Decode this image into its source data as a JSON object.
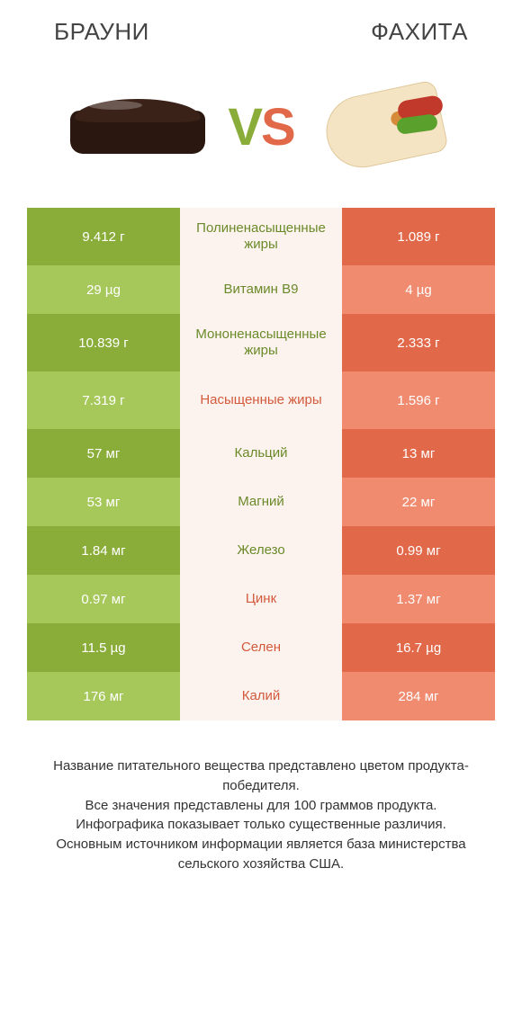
{
  "header": {
    "left_title": "БРАУНИ",
    "right_title": "ФАХИТА",
    "vs_v": "V",
    "vs_s": "S"
  },
  "colors": {
    "green_dark": "#8aad3a",
    "green_light": "#a6c85a",
    "orange_dark": "#e1694a",
    "orange_light": "#f08b6f",
    "mid_bg": "#fdf3ee",
    "mid_green_text": "#6a8a2a",
    "mid_orange_text": "#d25a3c",
    "background": "#ffffff"
  },
  "table": {
    "rows": [
      {
        "left": "9.412 г",
        "mid": "Полиненасыщенные жиры",
        "right": "1.089 г",
        "winner": "left",
        "tall": true
      },
      {
        "left": "29 µg",
        "mid": "Витамин B9",
        "right": "4 µg",
        "winner": "left",
        "tall": false
      },
      {
        "left": "10.839 г",
        "mid": "Мононенасыщенные жиры",
        "right": "2.333 г",
        "winner": "left",
        "tall": true
      },
      {
        "left": "7.319 г",
        "mid": "Насыщенные жиры",
        "right": "1.596 г",
        "winner": "right",
        "tall": true
      },
      {
        "left": "57 мг",
        "mid": "Кальций",
        "right": "13 мг",
        "winner": "left",
        "tall": false
      },
      {
        "left": "53 мг",
        "mid": "Магний",
        "right": "22 мг",
        "winner": "left",
        "tall": false
      },
      {
        "left": "1.84 мг",
        "mid": "Железо",
        "right": "0.99 мг",
        "winner": "left",
        "tall": false
      },
      {
        "left": "0.97 мг",
        "mid": "Цинк",
        "right": "1.37 мг",
        "winner": "right",
        "tall": false
      },
      {
        "left": "11.5 µg",
        "mid": "Селен",
        "right": "16.7 µg",
        "winner": "right",
        "tall": false
      },
      {
        "left": "176 мг",
        "mid": "Калий",
        "right": "284 мг",
        "winner": "right",
        "tall": false
      }
    ]
  },
  "footer": {
    "line1": "Название питательного вещества представлено цветом продукта-победителя.",
    "line2": "Все значения представлены для 100 граммов продукта.",
    "line3": "Инфографика показывает только существенные различия.",
    "line4": "Основным источником информации является база министерства сельского хозяйства США."
  }
}
